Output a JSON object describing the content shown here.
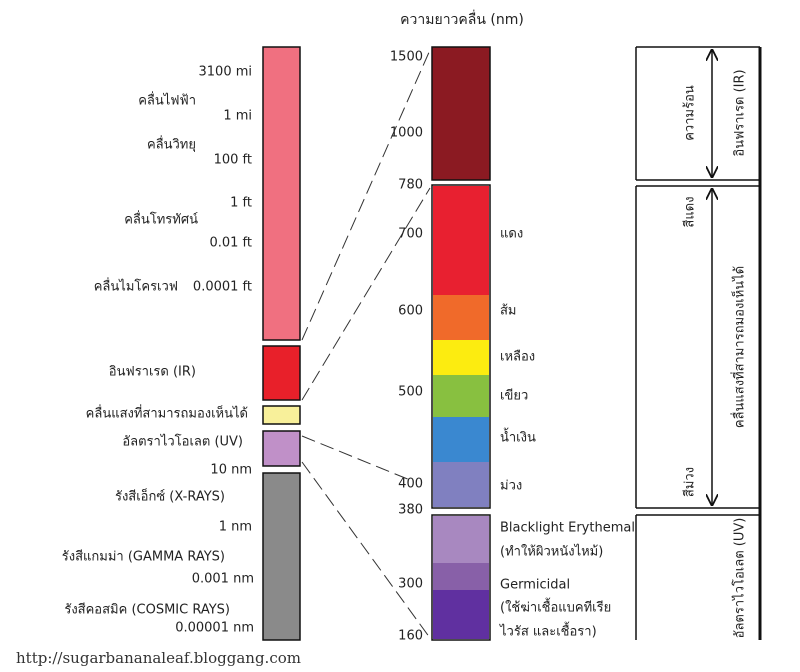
{
  "spectrum": {
    "labels": [
      "คลื่นไฟฟ้า",
      "คลื่นวิทยุ",
      "คลื่นโทรทัศน์",
      "คลื่นไมโครเวฟ",
      "อินฟราเรด (IR)",
      "คลื่นแสงที่สามารถมองเห็นได้",
      "อัลตราไวโอเลต (UV)",
      "รังสีเอ็กซ์ (X-RAYS)",
      "รังสีแกมม่า (GAMMA RAYS)",
      "รังสีคอสมิค (COSMIC RAYS)"
    ],
    "wavelengths": [
      "3100 mi",
      "1 mi",
      "100 ft",
      "1 ft",
      "0.01 ft",
      "0.0001 ft",
      "10 nm",
      "1 nm",
      "0.001 nm",
      "0.00001 nm"
    ]
  },
  "detail": {
    "title": "ความยาวคลื่น (nm)",
    "ticks": [
      1500,
      1000,
      780,
      700,
      600,
      500,
      400,
      380,
      300,
      160
    ],
    "colors": [
      "แดง",
      "ส้ม",
      "เหลือง",
      "เขียว",
      "น้ำเงิน",
      "ม่วง"
    ],
    "uv_bands": [
      {
        "name": "Blacklight Erythemal",
        "note": [
          "(ทำให้ผิวหนังไหม้)"
        ]
      },
      {
        "name": "Germicidal",
        "note": [
          "(ใช้ฆ่าเชื้อแบคทีเรีย",
          "ไวรัส และเชื้อรา)"
        ]
      }
    ]
  },
  "groups": {
    "heat": "ความร้อน",
    "ir": "อินฟราเรด (IR)",
    "red": "สีแดง",
    "violet": "สีม่วง",
    "visible": "คลื่นแสงที่สามารถมองเห็นได้",
    "uv": "อัลตราไวโอเลต (UV)"
  },
  "footer": "http://sugarbananaleaf.bloggang.com"
}
